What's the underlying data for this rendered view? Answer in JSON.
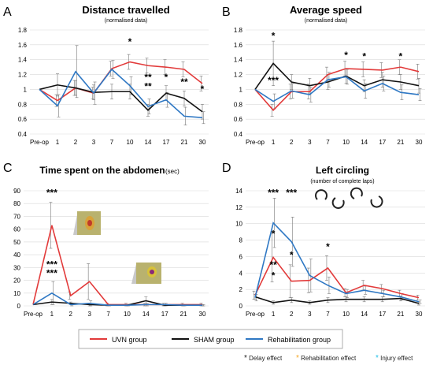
{
  "figure": {
    "legend": {
      "series": [
        "UVN group",
        "SHAM group",
        "Rehabilitation group"
      ],
      "effects": [
        "* Delay effect",
        "* Rehabilitation effect",
        "* Injury effect"
      ]
    }
  },
  "chart_data": [
    {
      "panel": "A",
      "type": "line",
      "title": "Distance travelled",
      "subtitle": "(normalised data)",
      "categories": [
        "Pre-op",
        "1",
        "2",
        "3",
        "7",
        "10",
        "14",
        "17",
        "21",
        "30"
      ],
      "ylim": [
        0.4,
        1.8
      ],
      "yticks": [
        0.4,
        0.6,
        0.8,
        1,
        1.2,
        1.4,
        1.6,
        1.8
      ],
      "series": [
        {
          "name": "UVN group",
          "values": [
            1.0,
            0.85,
            1.02,
            0.95,
            1.28,
            1.37,
            1.32,
            1.3,
            1.27,
            1.08
          ],
          "err": [
            0,
            0.08,
            0.1,
            0.08,
            0.1,
            0.1,
            0.1,
            0.1,
            0.1,
            0.1
          ]
        },
        {
          "name": "SHAM group",
          "values": [
            1.0,
            1.06,
            1.02,
            0.96,
            0.97,
            0.97,
            0.72,
            0.95,
            0.88,
            0.7
          ],
          "err": [
            0,
            0.15,
            0.1,
            0.1,
            0.1,
            0.1,
            0.08,
            0.1,
            0.1,
            0.1
          ]
        },
        {
          "name": "Rehabilitation group",
          "values": [
            1.0,
            0.78,
            1.24,
            0.95,
            1.27,
            1.05,
            0.77,
            0.86,
            0.64,
            0.62
          ],
          "err": [
            0,
            0.15,
            0.35,
            0.15,
            0.12,
            0.12,
            0.1,
            0.1,
            0.12,
            0.08
          ]
        }
      ],
      "annotations": [
        {
          "x": "10",
          "text": "*",
          "color": "#222222",
          "y": 1.6
        },
        {
          "x": "14",
          "text": "**",
          "color": "#22c0e8",
          "y": 1.12
        },
        {
          "x": "14",
          "text": "**",
          "color": "#f5a623",
          "y": 1.0
        },
        {
          "x": "17",
          "text": "*",
          "color": "#f5a623",
          "y": 1.12
        },
        {
          "x": "21",
          "text": "**",
          "color": "#f5a623",
          "y": 1.06
        },
        {
          "x": "30",
          "text": "*",
          "color": "#f5a623",
          "y": 0.96
        }
      ]
    },
    {
      "panel": "B",
      "type": "line",
      "title": "Average speed",
      "subtitle": "(normalised data)",
      "categories": [
        "Pre-op",
        "1",
        "2",
        "3",
        "7",
        "10",
        "14",
        "17",
        "21",
        "30"
      ],
      "ylim": [
        0.4,
        1.8
      ],
      "yticks": [
        0.4,
        0.6,
        0.8,
        1,
        1.2,
        1.4,
        1.6,
        1.8
      ],
      "series": [
        {
          "name": "UVN group",
          "values": [
            1.0,
            0.72,
            0.97,
            0.97,
            1.2,
            1.28,
            1.27,
            1.26,
            1.3,
            1.24
          ],
          "err": [
            0,
            0.08,
            0.1,
            0.1,
            0.1,
            0.1,
            0.1,
            0.1,
            0.1,
            0.1
          ]
        },
        {
          "name": "SHAM group",
          "values": [
            1.0,
            1.35,
            1.1,
            1.05,
            1.1,
            1.18,
            1.05,
            1.13,
            1.1,
            1.05
          ],
          "err": [
            0,
            0.3,
            0.1,
            0.1,
            0.1,
            0.1,
            0.08,
            0.1,
            0.1,
            0.1
          ]
        },
        {
          "name": "Rehabilitation group",
          "values": [
            1.0,
            0.84,
            0.98,
            0.93,
            1.13,
            1.17,
            0.98,
            1.08,
            0.96,
            0.93
          ],
          "err": [
            0,
            0.1,
            0.1,
            0.1,
            0.1,
            0.1,
            0.1,
            0.1,
            0.1,
            0.08
          ]
        }
      ],
      "annotations": [
        {
          "x": "1",
          "text": "*",
          "color": "#222222",
          "y": 1.68
        },
        {
          "x": "1",
          "text": "***",
          "color": "#22c0e8",
          "y": 1.08
        },
        {
          "x": "10",
          "text": "*",
          "color": "#222222",
          "y": 1.42
        },
        {
          "x": "14",
          "text": "*",
          "color": "#222222",
          "y": 1.4
        },
        {
          "x": "21",
          "text": "*",
          "color": "#222222",
          "y": 1.4
        }
      ]
    },
    {
      "panel": "C",
      "type": "line",
      "title": "Time spent on the abdomen",
      "unit": "(sec)",
      "categories": [
        "Pre-op",
        "1",
        "2",
        "3",
        "7",
        "10",
        "14",
        "17",
        "21",
        "30"
      ],
      "ylim": [
        0,
        90
      ],
      "yticks": [
        0,
        10,
        20,
        30,
        40,
        50,
        60,
        70,
        80,
        90
      ],
      "series": [
        {
          "name": "UVN group",
          "values": [
            1,
            63,
            8,
            19,
            1,
            1,
            1,
            1,
            1,
            1
          ],
          "err": [
            0,
            18,
            3,
            14,
            1,
            1,
            1,
            1,
            1,
            1
          ]
        },
        {
          "name": "SHAM group",
          "values": [
            1,
            3,
            2,
            1,
            0.5,
            0.5,
            4,
            0.5,
            0.5,
            0.5
          ],
          "err": [
            0,
            2,
            1,
            1,
            0.5,
            0.5,
            3,
            0.5,
            0.5,
            0.5
          ]
        },
        {
          "name": "Rehabilitation group",
          "values": [
            1,
            10,
            1,
            2,
            0.5,
            0.5,
            1,
            1,
            0.5,
            0.5
          ],
          "err": [
            0,
            9,
            1,
            2,
            0.5,
            0.5,
            1,
            1,
            0.5,
            0.5
          ]
        }
      ],
      "annotations": [
        {
          "x": "1",
          "text": "***",
          "color": "#222222",
          "y": 86
        },
        {
          "x": "1",
          "text": "***",
          "color": "#f5a623",
          "y": 30
        },
        {
          "x": "1",
          "text": "***",
          "color": "#22c0e8",
          "y": 23
        }
      ]
    },
    {
      "panel": "D",
      "type": "line",
      "title": "Left circling",
      "subtitle": "(number of complete laps)",
      "categories": [
        "Pre-op",
        "1",
        "2",
        "3",
        "7",
        "10",
        "14",
        "17",
        "21",
        "30"
      ],
      "ylim": [
        0,
        14
      ],
      "yticks": [
        0,
        2,
        4,
        6,
        8,
        10,
        12,
        14
      ],
      "series": [
        {
          "name": "UVN group",
          "values": [
            1.3,
            5.9,
            3.0,
            3.1,
            4.6,
            1.6,
            2.5,
            2.1,
            1.5,
            1.0
          ],
          "err": [
            0.5,
            3,
            2,
            1.5,
            1.5,
            0.5,
            0.6,
            0.5,
            0.4,
            0.3
          ]
        },
        {
          "name": "SHAM group",
          "values": [
            1.1,
            0.4,
            0.7,
            0.4,
            0.7,
            0.8,
            0.8,
            0.8,
            0.9,
            0.3
          ],
          "err": [
            0.3,
            0.2,
            0.3,
            0.2,
            0.3,
            0.3,
            0.3,
            0.3,
            0.3,
            0.2
          ]
        },
        {
          "name": "Rehabilitation group",
          "values": [
            1.0,
            10.1,
            7.8,
            3.7,
            2.5,
            1.5,
            1.9,
            1.5,
            1.1,
            0.5
          ],
          "err": [
            0.4,
            3,
            3,
            2,
            1,
            0.5,
            0.5,
            0.4,
            0.4,
            0.2
          ]
        }
      ],
      "annotations": [
        {
          "x": "1",
          "text": "***",
          "color": "#222222",
          "y": 13.4
        },
        {
          "x": "2",
          "text": "***",
          "color": "#222222",
          "y": 13.4
        },
        {
          "x": "1",
          "text": "*",
          "color": "#f5a623",
          "y": 8.4
        },
        {
          "x": "1",
          "text": "**",
          "color": "#222222",
          "y": 4.6
        },
        {
          "x": "1",
          "text": "*",
          "color": "#22c0e8",
          "y": 3.3
        },
        {
          "x": "2",
          "text": "*",
          "color": "#f5a623",
          "y": 5.8
        },
        {
          "x": "7",
          "text": "*",
          "color": "#22c0e8",
          "y": 6.8
        }
      ]
    }
  ],
  "colors": {
    "uvn": "#e23a3a",
    "sham": "#111111",
    "rehab": "#2f78c4",
    "delay": "#222222",
    "rehab_effect": "#f5a623",
    "injury": "#22c0e8",
    "grid": "#d9d9d9"
  }
}
